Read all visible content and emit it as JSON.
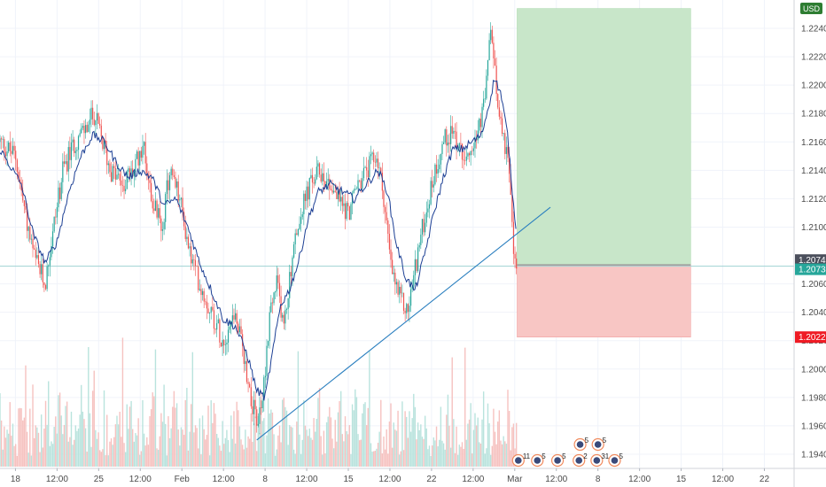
{
  "currency_badge": "USD",
  "chart_data": {
    "type": "candlestick",
    "title": "",
    "xlabel": "",
    "ylabel": "",
    "ylim": [
      1.193,
      1.226
    ],
    "y_ticks": [
      "1.22400",
      "1.22200",
      "1.22000",
      "1.21800",
      "1.21600",
      "1.21400",
      "1.21200",
      "1.21000",
      "1.20600",
      "1.20400",
      "1.20200",
      "1.20000",
      "1.19800",
      "1.19600",
      "1.19400"
    ],
    "y_tick_values": [
      1.224,
      1.222,
      1.22,
      1.218,
      1.216,
      1.214,
      1.212,
      1.21,
      1.206,
      1.204,
      1.202,
      1.2,
      1.198,
      1.196,
      1.194
    ],
    "x_ticks": [
      "18",
      "12:00",
      "25",
      "12:00",
      "Feb",
      "12:00",
      "8",
      "12:00",
      "15",
      "12:00",
      "22",
      "12:00",
      "Mar",
      "12:00",
      "8",
      "12:00",
      "15",
      "12:00",
      "22"
    ],
    "x_tick_days": [
      0,
      3.5,
      7,
      10.5,
      14,
      17.5,
      21,
      24.5,
      28,
      31.5,
      35,
      38.5,
      42,
      45.5,
      49,
      52.5,
      56,
      59.5,
      63
    ],
    "x_range_days": [
      -1.3,
      65.5
    ],
    "price_path": [
      [
        -1.3,
        1.216
      ],
      [
        0,
        1.215
      ],
      [
        0.8,
        1.211
      ],
      [
        1.5,
        1.208
      ],
      [
        2.5,
        1.206
      ],
      [
        3.2,
        1.21
      ],
      [
        4,
        1.214
      ],
      [
        5,
        1.216
      ],
      [
        6,
        1.217
      ],
      [
        6.6,
        1.218
      ],
      [
        7.3,
        1.216
      ],
      [
        8,
        1.214
      ],
      [
        9,
        1.213
      ],
      [
        10,
        1.214
      ],
      [
        10.7,
        1.216
      ],
      [
        11.5,
        1.212
      ],
      [
        12.3,
        1.21
      ],
      [
        13,
        1.214
      ],
      [
        13.8,
        1.212
      ],
      [
        14.7,
        1.208
      ],
      [
        15.5,
        1.206
      ],
      [
        16.5,
        1.204
      ],
      [
        17.5,
        1.202
      ],
      [
        18.4,
        1.204
      ],
      [
        19,
        1.202
      ],
      [
        19.6,
        1.199
      ],
      [
        20.3,
        1.196
      ],
      [
        20.8,
        1.198
      ],
      [
        21.4,
        1.204
      ],
      [
        22,
        1.206
      ],
      [
        22.6,
        1.203
      ],
      [
        23.3,
        1.208
      ],
      [
        24,
        1.211
      ],
      [
        24.8,
        1.213
      ],
      [
        25.6,
        1.214
      ],
      [
        26.5,
        1.213
      ],
      [
        27.2,
        1.212
      ],
      [
        28,
        1.211
      ],
      [
        28.8,
        1.213
      ],
      [
        29.6,
        1.214
      ],
      [
        30.4,
        1.215
      ],
      [
        31,
        1.212
      ],
      [
        31.6,
        1.207
      ],
      [
        32.3,
        1.205
      ],
      [
        33,
        1.204
      ],
      [
        33.8,
        1.208
      ],
      [
        34.5,
        1.211
      ],
      [
        35.3,
        1.214
      ],
      [
        36,
        1.216
      ],
      [
        36.8,
        1.217
      ],
      [
        37.5,
        1.215
      ],
      [
        38.3,
        1.216
      ],
      [
        39.1,
        1.217
      ],
      [
        39.6,
        1.22
      ],
      [
        40,
        1.224
      ],
      [
        40.5,
        1.219
      ],
      [
        41,
        1.217
      ],
      [
        41.5,
        1.214
      ],
      [
        41.9,
        1.208
      ],
      [
        42.2,
        1.2068
      ]
    ],
    "moving_average": {
      "color": "#1c3f94",
      "path": [
        [
          -1.3,
          1.2155
        ],
        [
          0.5,
          1.213
        ],
        [
          1.5,
          1.2095
        ],
        [
          2.5,
          1.2075
        ],
        [
          3.5,
          1.209
        ],
        [
          4.5,
          1.2125
        ],
        [
          5.5,
          1.215
        ],
        [
          6.5,
          1.2165
        ],
        [
          7.5,
          1.216
        ],
        [
          8.5,
          1.2145
        ],
        [
          9.5,
          1.2135
        ],
        [
          10.5,
          1.214
        ],
        [
          11.5,
          1.2135
        ],
        [
          12.5,
          1.2115
        ],
        [
          13.5,
          1.212
        ],
        [
          14.5,
          1.21
        ],
        [
          15.5,
          1.2075
        ],
        [
          16.5,
          1.2055
        ],
        [
          17.5,
          1.2035
        ],
        [
          18.5,
          1.203
        ],
        [
          19.5,
          1.201
        ],
        [
          20.3,
          1.1985
        ],
        [
          21,
          1.198
        ],
        [
          21.6,
          1.201
        ],
        [
          22.3,
          1.2045
        ],
        [
          23,
          1.2055
        ],
        [
          23.8,
          1.2075
        ],
        [
          24.6,
          1.2105
        ],
        [
          25.5,
          1.2125
        ],
        [
          26.5,
          1.213
        ],
        [
          27.5,
          1.2125
        ],
        [
          28.5,
          1.212
        ],
        [
          29.5,
          1.213
        ],
        [
          30.5,
          1.214
        ],
        [
          31.3,
          1.2125
        ],
        [
          32,
          1.209
        ],
        [
          32.8,
          1.2065
        ],
        [
          33.6,
          1.2055
        ],
        [
          34.4,
          1.208
        ],
        [
          35.2,
          1.211
        ],
        [
          36,
          1.2135
        ],
        [
          36.8,
          1.2155
        ],
        [
          37.6,
          1.2155
        ],
        [
          38.4,
          1.216
        ],
        [
          39.2,
          1.2165
        ],
        [
          39.8,
          1.2185
        ],
        [
          40.3,
          1.2205
        ],
        [
          40.8,
          1.2195
        ],
        [
          41.4,
          1.2165
        ],
        [
          41.9,
          1.2115
        ],
        [
          42.2,
          1.2095
        ]
      ]
    },
    "candle_colors": {
      "up": "#26a69a",
      "down": "#ef5350"
    },
    "trendline": {
      "start": {
        "day": 20.3,
        "price": 1.195
      },
      "end": {
        "day": 45.0,
        "price": 1.2114
      },
      "color": "#2a7fbf"
    },
    "long_position": {
      "start_day": 42.2,
      "end_day": 56.8,
      "target": 1.2254,
      "entry": 1.20734,
      "stop": 1.20225,
      "profit_color": "#c8e6c9",
      "loss_color": "#f8c6c4"
    },
    "horizontal_line": {
      "price": 1.20734,
      "color": "#9fd3d3"
    },
    "price_labels": [
      {
        "text": "1.20746",
        "value": 1.20746,
        "color": "#4b4f5c"
      },
      {
        "text": "1.20734",
        "value": 1.20734,
        "color": "#26a69a"
      },
      {
        "text": "1.20225",
        "value": 1.20225,
        "color": "#ef1b24"
      }
    ],
    "volume": {
      "max_height_fraction": 0.28,
      "up_color": "#b9e3dd",
      "down_color": "#f6c2c0"
    },
    "event_markers": [
      {
        "day": 42.3,
        "label": "11",
        "row": 1
      },
      {
        "day": 43.9,
        "label": "5",
        "row": 1
      },
      {
        "day": 45.6,
        "label": "5",
        "row": 1
      },
      {
        "day": 47.4,
        "label": "2",
        "row": 1
      },
      {
        "day": 48.9,
        "label": "31",
        "row": 1
      },
      {
        "day": 50.4,
        "label": "5",
        "row": 1
      },
      {
        "day": 47.5,
        "label": "5",
        "row": 2
      },
      {
        "day": 49.0,
        "label": "5",
        "row": 2
      }
    ]
  }
}
